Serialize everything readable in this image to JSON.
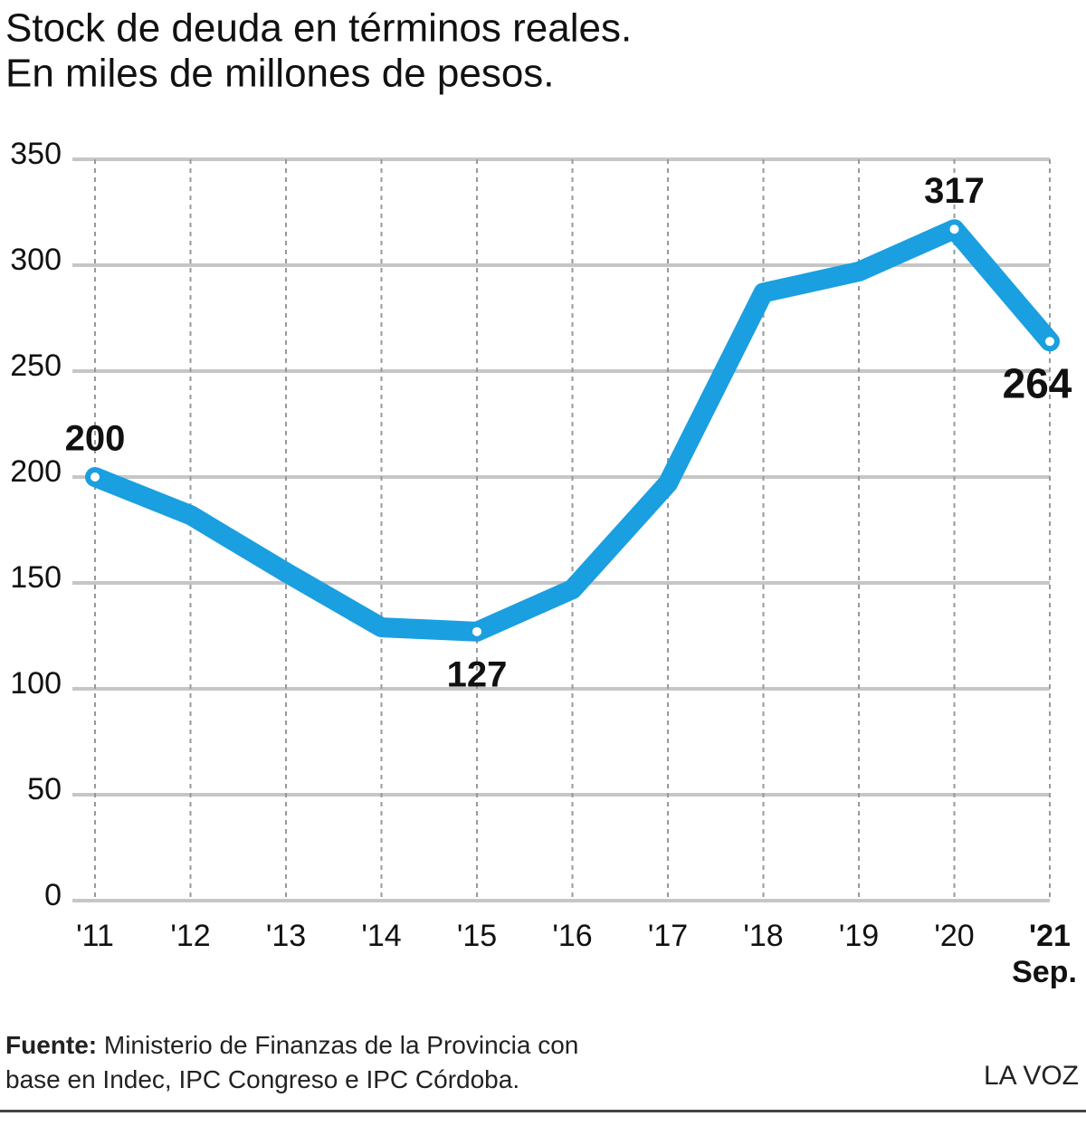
{
  "chart_data": {
    "type": "line",
    "title": "Stock de deuda en términos reales.",
    "subtitle": "En miles de millones de pesos.",
    "categories": [
      "'11",
      "'12",
      "'13",
      "'14",
      "'15",
      "'16",
      "'17",
      "'18",
      "'19",
      "'20",
      "'21 Sep."
    ],
    "values": [
      200,
      182,
      155,
      129,
      127,
      147,
      197,
      287,
      297,
      317,
      264
    ],
    "value_labels": [
      "200",
      null,
      null,
      null,
      "127",
      null,
      null,
      null,
      null,
      "317",
      "264"
    ],
    "color": "#1a9fe0",
    "ylim": [
      0,
      350
    ],
    "yticks": [
      0,
      50,
      100,
      150,
      200,
      250,
      300,
      350
    ],
    "grid": true,
    "source_label": "Fuente:",
    "source": "Ministerio de Finanzas de la Provincia con base en Indec, IPC Congreso e IPC Córdoba.",
    "brand": "LA VOZ"
  }
}
